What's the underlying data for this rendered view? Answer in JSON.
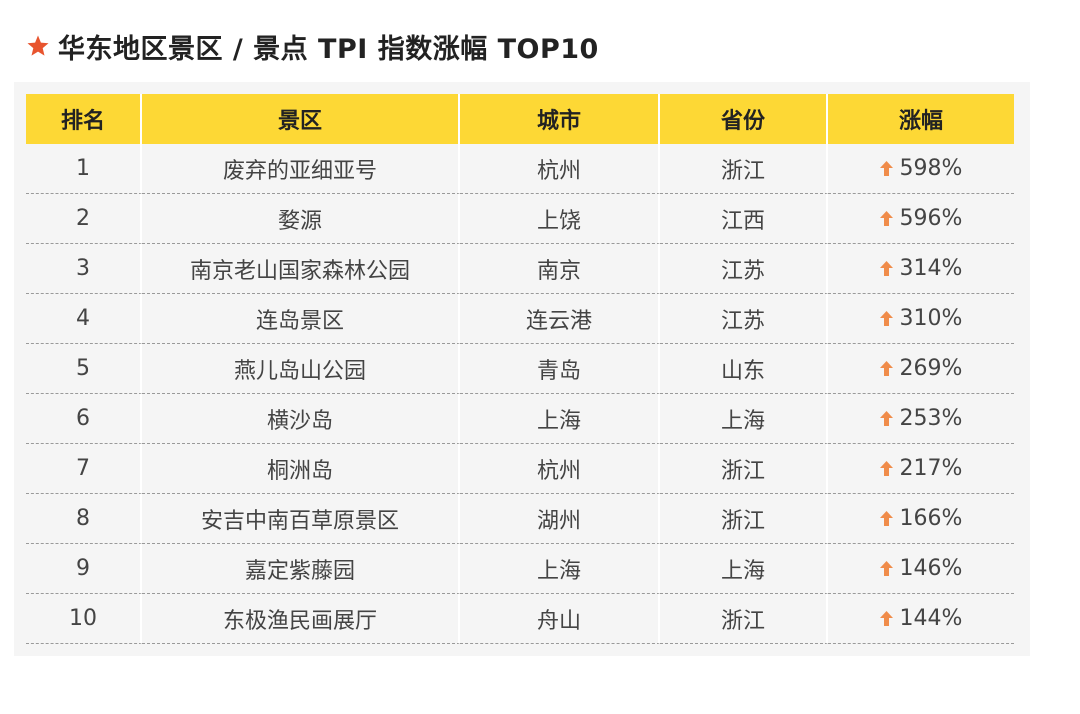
{
  "title": {
    "icon": "star-icon",
    "icon_color": "#e8542e",
    "text": "华东地区景区 / 景点 TPI 指数涨幅 TOP10"
  },
  "table": {
    "header_color": "#fdd835",
    "rise_icon": "up-arrow-icon",
    "rise_icon_color": "#f08c4a",
    "columns": [
      "排名",
      "景区",
      "城市",
      "省份",
      "涨幅"
    ],
    "rows": [
      {
        "rank": "1",
        "name": "废弃的亚细亚号",
        "city": "杭州",
        "province": "浙江",
        "rise": "598%"
      },
      {
        "rank": "2",
        "name": "婺源",
        "city": "上饶",
        "province": "江西",
        "rise": "596%"
      },
      {
        "rank": "3",
        "name": "南京老山国家森林公园",
        "city": "南京",
        "province": "江苏",
        "rise": "314%"
      },
      {
        "rank": "4",
        "name": "连岛景区",
        "city": "连云港",
        "province": "江苏",
        "rise": "310%"
      },
      {
        "rank": "5",
        "name": "燕儿岛山公园",
        "city": "青岛",
        "province": "山东",
        "rise": "269%"
      },
      {
        "rank": "6",
        "name": "横沙岛",
        "city": "上海",
        "province": "上海",
        "rise": "253%"
      },
      {
        "rank": "7",
        "name": "桐洲岛",
        "city": "杭州",
        "province": "浙江",
        "rise": "217%"
      },
      {
        "rank": "8",
        "name": "安吉中南百草原景区",
        "city": "湖州",
        "province": "浙江",
        "rise": "166%"
      },
      {
        "rank": "9",
        "name": "嘉定紫藤园",
        "city": "上海",
        "province": "上海",
        "rise": "146%"
      },
      {
        "rank": "10",
        "name": "东极渔民画展厅",
        "city": "舟山",
        "province": "浙江",
        "rise": "144%"
      }
    ]
  }
}
